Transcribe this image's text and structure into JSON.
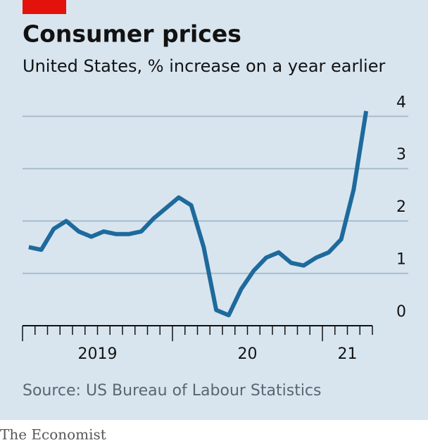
{
  "chart_data": {
    "type": "line",
    "title": "Consumer prices",
    "subtitle": "United States, % increase on a year earlier",
    "source": "Source: US Bureau of Labour Statistics",
    "brand": "The Economist",
    "categories": [
      null,
      null,
      null,
      null,
      null,
      null,
      null,
      null,
      null,
      null,
      null,
      null,
      null,
      null,
      null,
      null,
      null,
      null,
      null,
      null,
      null,
      null,
      null,
      null,
      null,
      null,
      null,
      null
    ],
    "x_group_labels": [
      "2019",
      "20",
      "21"
    ],
    "series": [
      {
        "name": "Consumer prices",
        "color": "#1e6a9c",
        "values": [
          1.5,
          1.45,
          1.85,
          2.0,
          1.8,
          1.7,
          1.8,
          1.75,
          1.75,
          1.8,
          2.05,
          2.25,
          2.45,
          2.3,
          1.5,
          0.3,
          0.2,
          0.7,
          1.05,
          1.3,
          1.4,
          1.2,
          1.15,
          1.3,
          1.4,
          1.65,
          2.6,
          4.1
        ]
      }
    ],
    "ylim": [
      0,
      4.3
    ],
    "yticks": [
      0,
      1,
      2,
      3,
      4
    ],
    "grid": true
  }
}
